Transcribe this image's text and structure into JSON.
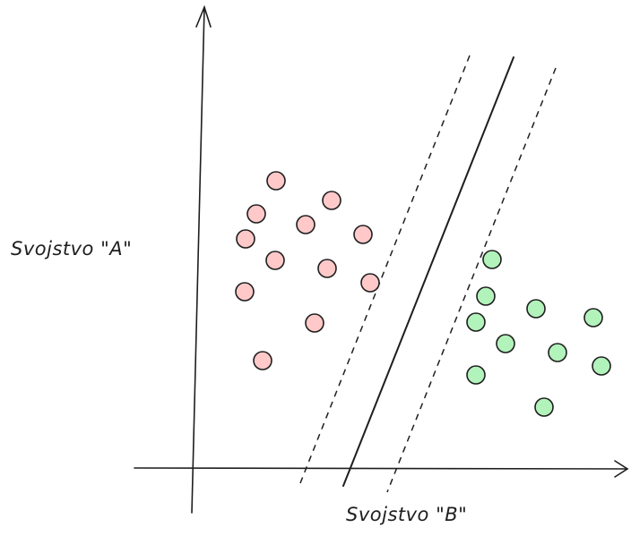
{
  "labels": {
    "y_axis": "Svojstvo \"A\"",
    "x_axis": "Svojstvo \"B\""
  },
  "colors": {
    "class_a_fill": "#ffc9c9",
    "class_b_fill": "#b2f2bb",
    "stroke": "#1e1e1e"
  }
}
